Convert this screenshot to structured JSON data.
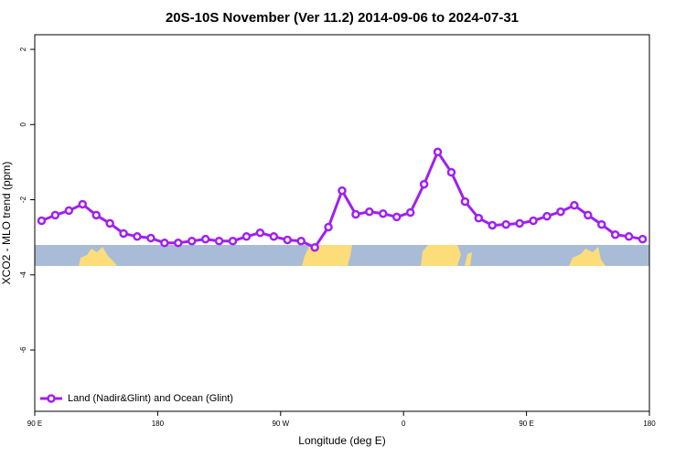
{
  "chart_data": {
    "type": "line",
    "title": "20S-10S November (Ver 11.2)   2014-09-06 to 2024-07-31",
    "xlabel": "Longitude (deg E)",
    "ylabel": "XCO2 - MLO trend (ppm)",
    "xlim": [
      90,
      540
    ],
    "ylim": [
      -7.63,
      2.39
    ],
    "xticks": [
      {
        "value": 90,
        "label": "90 E"
      },
      180,
      {
        "value": 270,
        "label": "90 W"
      },
      {
        "value": 360,
        "label": "0"
      },
      {
        "value": 450,
        "label": "90 E"
      },
      {
        "value": 540,
        "label": "180"
      }
    ],
    "yticks": [
      2,
      0,
      -2,
      -4,
      -6
    ],
    "legend": "bottom-left",
    "x": [
      95,
      105,
      115,
      125,
      135,
      145,
      155,
      165,
      175,
      185,
      195,
      205,
      215,
      225,
      235,
      245,
      255,
      265,
      275,
      285,
      295,
      305,
      315,
      325,
      335,
      345,
      355,
      365,
      375,
      385,
      395,
      405,
      415,
      425,
      435,
      445,
      455,
      465,
      475,
      485,
      495,
      505,
      515,
      525,
      535
    ],
    "series": [
      {
        "name": "Land (Nadir&Glint) and Ocean (Glint)",
        "color": "#a020f0",
        "values": [
          -2.56,
          -2.41,
          -2.29,
          -2.12,
          -2.41,
          -2.63,
          -2.9,
          -2.98,
          -3.02,
          -3.15,
          -3.15,
          -3.1,
          -3.05,
          -3.1,
          -3.1,
          -2.98,
          -2.88,
          -2.98,
          -3.07,
          -3.1,
          -3.27,
          -2.73,
          -1.76,
          -2.39,
          -2.32,
          -2.37,
          -2.46,
          -2.34,
          -1.59,
          -0.73,
          -1.27,
          -2.05,
          -2.49,
          -2.68,
          -2.66,
          -2.63,
          -2.56,
          -2.44,
          -2.32,
          -2.15,
          -2.41,
          -2.66,
          -2.93,
          -2.98,
          -3.05
        ]
      }
    ]
  }
}
